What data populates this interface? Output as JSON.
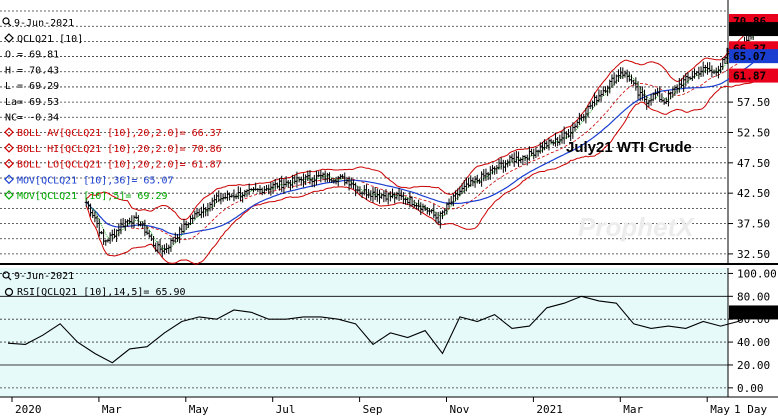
{
  "colors": {
    "price_bg": "#ffffff",
    "rsi_bg": "#e6fafa",
    "grid": "#333333",
    "bars": "#000000",
    "bollinger": "#cc0000",
    "mov36": "#1a3fd0",
    "mov5": "#00aa00",
    "rsi_line": "#000000",
    "tag_red": "#e8001c",
    "tag_blue": "#1a3fd0",
    "tag_dark": "#000000"
  },
  "price_panel": {
    "date": "9-Jun-2021",
    "legend": [
      {
        "text": "QCLQ21 [10]",
        "icon": "diamond-icon",
        "color": "#000000"
      },
      {
        "text": "O = 69.81",
        "color": "#000000"
      },
      {
        "text": "H = 70.43",
        "color": "#000000"
      },
      {
        "text": "L = 69.29",
        "color": "#000000"
      },
      {
        "text": "La= 69.53",
        "color": "#000000"
      },
      {
        "text": "NC= -0.34",
        "color": "#000000"
      },
      {
        "text": "BOLL AV[QCLQ21 [10],20,2.0]= 66.37",
        "icon": "diamond-icon",
        "color": "#cc0000"
      },
      {
        "text": "BOLL HI[QCLQ21 [10],20,2.0]= 70.86",
        "icon": "diamond-icon",
        "color": "#cc0000"
      },
      {
        "text": "BOLL LO[QCLQ21 [10],20,2.0]= 61.87",
        "icon": "diamond-icon",
        "color": "#cc0000"
      },
      {
        "text": "MOV[QCLQ21 [10],36]= 65.07",
        "icon": "diamond-icon",
        "color": "#1a3fd0"
      },
      {
        "text": "MOV[QCLQ21 [10],5]= 69.29",
        "icon": "diamond-icon",
        "color": "#00aa00"
      }
    ],
    "annotation": "July21 WTI Crude",
    "watermark": "ProphetX"
  },
  "rsi_panel": {
    "date": "9-Jun-2021",
    "legend": "RSI[QCLQ21 [10],14,5]= 65.90"
  },
  "timeframe": "1 Day",
  "chart_data": [
    {
      "type": "candlestick",
      "title": "July21 WTI Crude",
      "xlabel": "",
      "ylabel": "",
      "ylim": [
        31.0,
        73.0
      ],
      "yticks": [
        32.5,
        37.5,
        42.5,
        47.5,
        52.5,
        57.5
      ],
      "x_ticks": [
        "2020",
        "Mar",
        "May",
        "Jul",
        "Sep",
        "Nov",
        "2021",
        "Mar",
        "May"
      ],
      "x_range_months": [
        0,
        17.3
      ],
      "grid": true,
      "last_values": {
        "close": 69.53,
        "bollinger_high": 70.86,
        "bollinger_avg": 66.37,
        "bollinger_low": 61.87,
        "mov36": 65.07,
        "mov5": 69.29
      },
      "price_tags": [
        {
          "value": 70.86,
          "text": "70.86",
          "color": "#e8001c"
        },
        {
          "value": 69.53,
          "text": "69.53",
          "color": "#000000"
        },
        {
          "value": 66.37,
          "text": "66.37",
          "color": "#e8001c"
        },
        {
          "value": 65.07,
          "text": "65.07",
          "color": "#1a3fd0"
        },
        {
          "value": 61.87,
          "text": "61.87",
          "color": "#e8001c"
        }
      ],
      "close_path": [
        {
          "m": 1.8,
          "v": 41.0
        },
        {
          "m": 2.0,
          "v": 38.5
        },
        {
          "m": 2.2,
          "v": 34.5
        },
        {
          "m": 2.4,
          "v": 35.5
        },
        {
          "m": 2.6,
          "v": 37.2
        },
        {
          "m": 2.8,
          "v": 38.2
        },
        {
          "m": 3.0,
          "v": 37.8
        },
        {
          "m": 3.2,
          "v": 36.0
        },
        {
          "m": 3.4,
          "v": 33.5
        },
        {
          "m": 3.6,
          "v": 33.2
        },
        {
          "m": 3.8,
          "v": 34.8
        },
        {
          "m": 4.0,
          "v": 36.5
        },
        {
          "m": 4.2,
          "v": 38.2
        },
        {
          "m": 4.5,
          "v": 40.0
        },
        {
          "m": 4.8,
          "v": 41.5
        },
        {
          "m": 5.2,
          "v": 42.2
        },
        {
          "m": 5.6,
          "v": 42.6
        },
        {
          "m": 6.0,
          "v": 43.5
        },
        {
          "m": 6.4,
          "v": 44.2
        },
        {
          "m": 6.8,
          "v": 44.8
        },
        {
          "m": 7.2,
          "v": 45.2
        },
        {
          "m": 7.6,
          "v": 45.0
        },
        {
          "m": 7.9,
          "v": 44.3
        },
        {
          "m": 8.1,
          "v": 42.8
        },
        {
          "m": 8.4,
          "v": 42.5
        },
        {
          "m": 8.8,
          "v": 42.0
        },
        {
          "m": 9.1,
          "v": 41.8
        },
        {
          "m": 9.4,
          "v": 40.8
        },
        {
          "m": 9.7,
          "v": 39.5
        },
        {
          "m": 9.9,
          "v": 38.2
        },
        {
          "m": 10.1,
          "v": 40.2
        },
        {
          "m": 10.4,
          "v": 42.8
        },
        {
          "m": 10.7,
          "v": 44.2
        },
        {
          "m": 11.0,
          "v": 45.5
        },
        {
          "m": 11.3,
          "v": 47.0
        },
        {
          "m": 11.6,
          "v": 48.0
        },
        {
          "m": 12.0,
          "v": 48.8
        },
        {
          "m": 12.3,
          "v": 50.3
        },
        {
          "m": 12.6,
          "v": 51.0
        },
        {
          "m": 12.9,
          "v": 52.4
        },
        {
          "m": 13.2,
          "v": 55.2
        },
        {
          "m": 13.5,
          "v": 57.8
        },
        {
          "m": 13.7,
          "v": 59.5
        },
        {
          "m": 13.9,
          "v": 61.0
        },
        {
          "m": 14.1,
          "v": 62.5
        },
        {
          "m": 14.3,
          "v": 61.5
        },
        {
          "m": 14.5,
          "v": 58.8
        },
        {
          "m": 14.7,
          "v": 57.8
        },
        {
          "m": 14.9,
          "v": 58.8
        },
        {
          "m": 15.1,
          "v": 57.6
        },
        {
          "m": 15.3,
          "v": 59.3
        },
        {
          "m": 15.5,
          "v": 60.7
        },
        {
          "m": 15.7,
          "v": 61.6
        },
        {
          "m": 15.9,
          "v": 62.6
        },
        {
          "m": 16.1,
          "v": 63.0
        },
        {
          "m": 16.2,
          "v": 62.3
        },
        {
          "m": 16.4,
          "v": 63.5
        },
        {
          "m": 16.6,
          "v": 65.5
        },
        {
          "m": 16.8,
          "v": 66.4
        },
        {
          "m": 17.0,
          "v": 68.2
        },
        {
          "m": 17.1,
          "v": 69.0
        },
        {
          "m": 17.2,
          "v": 69.53
        }
      ]
    },
    {
      "type": "line",
      "title": "RSI[QCLQ21 [10],14,5]",
      "ylim": [
        -8,
        103
      ],
      "yticks": [
        0.0,
        20.0,
        40.0,
        60.0,
        80.0,
        100.0
      ],
      "reference_lines": [
        20,
        80
      ],
      "last_value": 65.9,
      "x": [
        0.0,
        0.4,
        0.8,
        1.2,
        1.6,
        2.0,
        2.4,
        2.8,
        3.2,
        3.6,
        4.0,
        4.4,
        4.8,
        5.2,
        5.6,
        6.0,
        6.4,
        6.8,
        7.2,
        7.6,
        8.0,
        8.4,
        8.8,
        9.2,
        9.6,
        10.0,
        10.4,
        10.8,
        11.2,
        11.6,
        12.0,
        12.4,
        12.8,
        13.2,
        13.6,
        14.0,
        14.4,
        14.8,
        15.2,
        15.6,
        16.0,
        16.4,
        16.8,
        17.2
      ],
      "values": [
        39,
        38,
        46,
        56,
        40,
        30,
        22,
        34,
        36,
        48,
        58,
        62,
        60,
        68,
        66,
        60,
        60,
        62,
        62,
        60,
        56,
        38,
        48,
        44,
        50,
        30,
        62,
        58,
        64,
        52,
        54,
        70,
        74,
        80,
        76,
        74,
        56,
        52,
        54,
        52,
        58,
        54,
        58,
        66
      ]
    }
  ]
}
